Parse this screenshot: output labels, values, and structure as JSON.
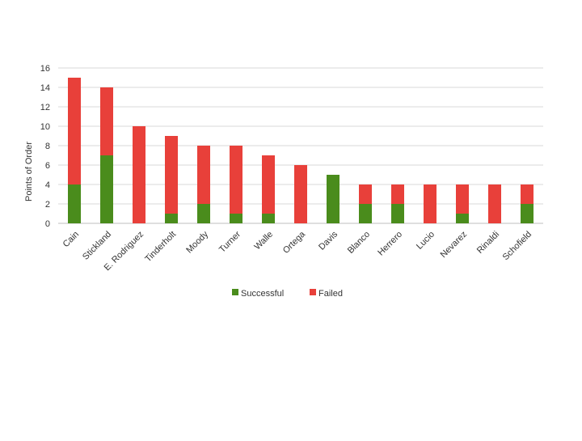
{
  "colors": {
    "successful": "#4a8c1c",
    "failed": "#e8403a",
    "grid": "#d9d9d9",
    "axis": "#bfbfbf"
  },
  "chart_data": {
    "type": "bar",
    "stacked": true,
    "title": "",
    "xlabel": "",
    "ylabel": "Points of Order",
    "ylim": [
      0,
      16
    ],
    "yticks": [
      0,
      2,
      4,
      6,
      8,
      10,
      12,
      14,
      16
    ],
    "grid": true,
    "legend_position": "bottom",
    "categories": [
      "Cain",
      "Stickland",
      "E. Rodriguez",
      "Tinderholt",
      "Moody",
      "Turner",
      "Walle",
      "Ortega",
      "Davis",
      "Blanco",
      "Herrero",
      "Lucio",
      "Nevarez",
      "Rinaldi",
      "Schofield"
    ],
    "series": [
      {
        "name": "Successful",
        "color": "#4a8c1c",
        "values": [
          4,
          7,
          0,
          1,
          2,
          1,
          1,
          0,
          5,
          2,
          2,
          0,
          1,
          0,
          2
        ]
      },
      {
        "name": "Failed",
        "color": "#e8403a",
        "values": [
          11,
          7,
          10,
          8,
          6,
          7,
          6,
          6,
          0,
          2,
          2,
          4,
          3,
          4,
          2
        ]
      }
    ]
  }
}
